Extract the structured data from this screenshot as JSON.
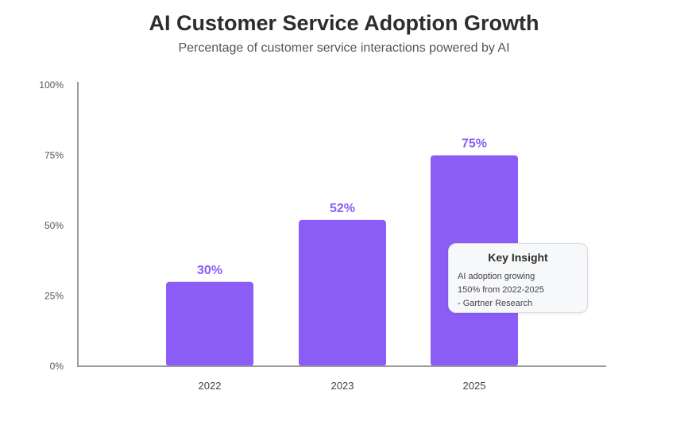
{
  "title": "AI Customer Service Adoption Growth",
  "subtitle": "Percentage of customer service interactions powered by AI",
  "chart_data": {
    "type": "bar",
    "categories": [
      "2022",
      "2023",
      "2025"
    ],
    "values": [
      30,
      52,
      75
    ],
    "value_labels": [
      "30%",
      "52%",
      "75%"
    ],
    "ylim": [
      0,
      100
    ],
    "yticks": [
      0,
      25,
      50,
      75,
      100
    ],
    "ytick_labels": [
      "0%",
      "25%",
      "50%",
      "75%",
      "100%"
    ],
    "xlabel": "",
    "ylabel": "",
    "grid": false,
    "bar_color": "#8b5cf6",
    "label_color": "#8b5cf6"
  },
  "insight": {
    "title": "Key Insight",
    "lines": [
      "AI adoption growing",
      "150% from 2022-2025",
      "- Gartner Research"
    ]
  }
}
